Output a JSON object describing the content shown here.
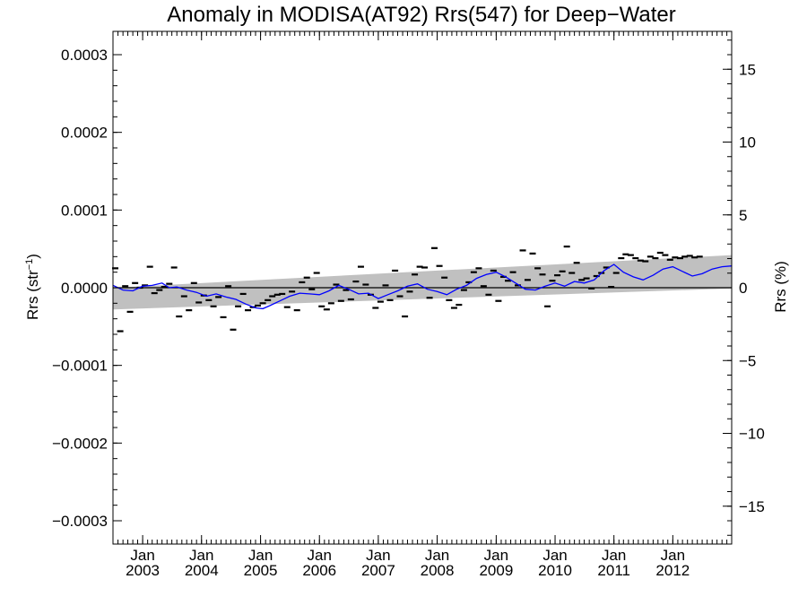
{
  "chart_data": {
    "type": "scatter",
    "title": "Anomaly in MODISA(AT92) Rrs(547) for Deep−Water",
    "ylabel_left": "Rrs (str⁻¹)",
    "ylabel_right": "Rrs (%)",
    "x_range": [
      "2002-07-01",
      "2012-12-31"
    ],
    "ylim_left": [
      -0.00033,
      0.00033
    ],
    "ylim_right": [
      -17.6,
      17.6
    ],
    "y_ticks_left": [
      {
        "value": 0.0003,
        "label": "0.0003"
      },
      {
        "value": 0.0002,
        "label": "0.0002"
      },
      {
        "value": 0.0001,
        "label": "0.0001"
      },
      {
        "value": 0.0,
        "label": "0.0000"
      },
      {
        "value": -0.0001,
        "label": "−0.0001"
      },
      {
        "value": -0.0002,
        "label": "−0.0002"
      },
      {
        "value": -0.0003,
        "label": "−0.0003"
      }
    ],
    "y_ticks_right": [
      {
        "value": 15,
        "label": "15"
      },
      {
        "value": 10,
        "label": "10"
      },
      {
        "value": 5,
        "label": "5"
      },
      {
        "value": 0,
        "label": "0"
      },
      {
        "value": -5,
        "label": "−5"
      },
      {
        "value": -10,
        "label": "−10"
      },
      {
        "value": -15,
        "label": "−15"
      }
    ],
    "x_ticks": [
      {
        "date": "2003-01-01",
        "label1": "Jan",
        "label2": "2003"
      },
      {
        "date": "2004-01-01",
        "label1": "Jan",
        "label2": "2004"
      },
      {
        "date": "2005-01-01",
        "label1": "Jan",
        "label2": "2005"
      },
      {
        "date": "2006-01-01",
        "label1": "Jan",
        "label2": "2006"
      },
      {
        "date": "2007-01-01",
        "label1": "Jan",
        "label2": "2007"
      },
      {
        "date": "2008-01-01",
        "label1": "Jan",
        "label2": "2008"
      },
      {
        "date": "2009-01-01",
        "label1": "Jan",
        "label2": "2009"
      },
      {
        "date": "2010-01-01",
        "label1": "Jan",
        "label2": "2010"
      },
      {
        "date": "2011-01-01",
        "label1": "Jan",
        "label2": "2011"
      },
      {
        "date": "2012-01-01",
        "label1": "Jan",
        "label2": "2012"
      }
    ],
    "zero_line": 0,
    "band": {
      "color": "#c0c0c0",
      "start": {
        "date": "2002-07-01",
        "lower": -2.8e-05,
        "upper": 0.0
      },
      "end": {
        "date": "2012-12-31",
        "lower": -1e-06,
        "upper": 4.2e-05
      }
    },
    "monthly_anomalies": {
      "start": "2002-07",
      "color": "#000000",
      "values": [
        2.5e-05,
        -5.6e-05,
        2e-06,
        -3.1e-05,
        6e-06,
        0.0,
        3e-06,
        2.7e-05,
        -7e-06,
        -3e-06,
        1e-06,
        5e-06,
        2.6e-05,
        -3.7e-05,
        -1.1e-05,
        -2.9e-05,
        6e-06,
        -1.9e-05,
        -1e-05,
        -1.6e-05,
        -2.4e-05,
        -1.2e-05,
        -3.8e-05,
        2e-06,
        -5.4e-05,
        -2.4e-05,
        -8e-06,
        -2.9e-05,
        -2.5e-05,
        -2.3e-05,
        -2e-05,
        -1.6e-05,
        -1.1e-05,
        -9e-06,
        -8e-06,
        -2.5e-05,
        -5e-06,
        -2.9e-05,
        7e-06,
        1.3e-05,
        -2e-06,
        1.9e-05,
        -2.4e-05,
        -2.8e-05,
        -2e-05,
        4e-06,
        -1.7e-05,
        -3e-06,
        -1.5e-05,
        8e-06,
        2.7e-05,
        4e-06,
        -9e-06,
        -2.6e-05,
        -1.8e-05,
        3e-06,
        -1.6e-05,
        2.2e-05,
        -1.1e-05,
        -3.7e-05,
        -5e-06,
        1.7e-05,
        2.7e-05,
        2.6e-05,
        -1.3e-05,
        5.1e-05,
        2.8e-05,
        1.3e-05,
        -1.6e-05,
        -2.6e-05,
        -2.2e-05,
        -3e-06,
        7e-06,
        2e-05,
        2.5e-05,
        2e-06,
        -9e-06,
        2.2e-05,
        -1.7e-05,
        1.4e-05,
        9e-06,
        2e-05,
        3e-06,
        4.8e-05,
        1e-05,
        4.4e-05,
        2.5e-05,
        1.7e-05,
        -2.4e-05,
        9e-06,
        1.6e-05,
        2.1e-05,
        5.3e-05,
        1.9e-05,
        3.2e-05,
        1e-05,
        1.2e-05,
        -1e-06,
        1.5e-05,
        1.9e-05,
        2.6e-05,
        1e-06,
        1.9e-05,
        3.8e-05,
        4.3e-05,
        4.2e-05,
        3.8e-05,
        3.5e-05,
        3.4e-05,
        4e-05,
        3.8e-05,
        4.5e-05,
        4.2e-05,
        3.6e-05,
        3.9e-05,
        3.8e-05,
        4e-05,
        4.1e-05,
        3.9e-05,
        4e-05
      ]
    },
    "running_mean": {
      "color": "#0000ff",
      "points": [
        [
          "2002-07-01",
          3e-06
        ],
        [
          "2002-09-01",
          -3e-06
        ],
        [
          "2002-11-01",
          -4e-06
        ],
        [
          "2003-01-01",
          2e-06
        ],
        [
          "2003-03-01",
          3e-06
        ],
        [
          "2003-05-01",
          6e-06
        ],
        [
          "2003-06-15",
          0.0
        ],
        [
          "2003-08-01",
          1e-06
        ],
        [
          "2003-10-01",
          -3e-06
        ],
        [
          "2003-12-01",
          -6e-06
        ],
        [
          "2004-02-01",
          -1.1e-05
        ],
        [
          "2004-04-01",
          -8e-06
        ],
        [
          "2004-06-01",
          -1.2e-05
        ],
        [
          "2004-08-01",
          -1.5e-05
        ],
        [
          "2004-10-01",
          -2.1e-05
        ],
        [
          "2004-12-01",
          -2.6e-05
        ],
        [
          "2005-01-15",
          -2.7e-05
        ],
        [
          "2005-03-01",
          -2.3e-05
        ],
        [
          "2005-05-01",
          -1.7e-05
        ],
        [
          "2005-07-01",
          -1.1e-05
        ],
        [
          "2005-09-01",
          -7e-06
        ],
        [
          "2005-11-01",
          -8e-06
        ],
        [
          "2006-01-01",
          -9e-06
        ],
        [
          "2006-03-01",
          -4e-06
        ],
        [
          "2006-05-01",
          3e-06
        ],
        [
          "2006-07-01",
          -2e-06
        ],
        [
          "2006-09-01",
          -8e-06
        ],
        [
          "2006-11-01",
          -7e-06
        ],
        [
          "2007-01-01",
          -1.4e-05
        ],
        [
          "2007-03-01",
          -9e-06
        ],
        [
          "2007-05-01",
          -4e-06
        ],
        [
          "2007-07-01",
          2e-06
        ],
        [
          "2007-09-01",
          5e-06
        ],
        [
          "2007-11-01",
          -2e-06
        ],
        [
          "2008-01-01",
          -5e-06
        ],
        [
          "2008-03-01",
          -9e-06
        ],
        [
          "2008-05-01",
          -2e-06
        ],
        [
          "2008-07-01",
          3e-06
        ],
        [
          "2008-09-01",
          1.2e-05
        ],
        [
          "2008-11-01",
          1.7e-05
        ],
        [
          "2009-01-01",
          2e-05
        ],
        [
          "2009-03-01",
          1.4e-05
        ],
        [
          "2009-05-01",
          6e-06
        ],
        [
          "2009-07-01",
          -2e-06
        ],
        [
          "2009-09-01",
          -3e-06
        ],
        [
          "2009-11-01",
          2e-06
        ],
        [
          "2010-01-01",
          6e-06
        ],
        [
          "2010-03-01",
          2e-06
        ],
        [
          "2010-05-01",
          8e-06
        ],
        [
          "2010-07-01",
          6e-06
        ],
        [
          "2010-09-01",
          1e-05
        ],
        [
          "2010-11-01",
          2.2e-05
        ],
        [
          "2011-01-01",
          3e-05
        ],
        [
          "2011-03-01",
          2e-05
        ],
        [
          "2011-05-01",
          1.4e-05
        ],
        [
          "2011-07-01",
          1e-05
        ],
        [
          "2011-09-01",
          1.6e-05
        ],
        [
          "2011-11-01",
          2.4e-05
        ],
        [
          "2012-01-01",
          2.7e-05
        ],
        [
          "2012-03-01",
          2.1e-05
        ],
        [
          "2012-05-01",
          1.5e-05
        ],
        [
          "2012-07-01",
          1.8e-05
        ],
        [
          "2012-09-01",
          2.4e-05
        ],
        [
          "2012-11-01",
          2.7e-05
        ],
        [
          "2012-12-31",
          2.8e-05
        ]
      ]
    }
  }
}
